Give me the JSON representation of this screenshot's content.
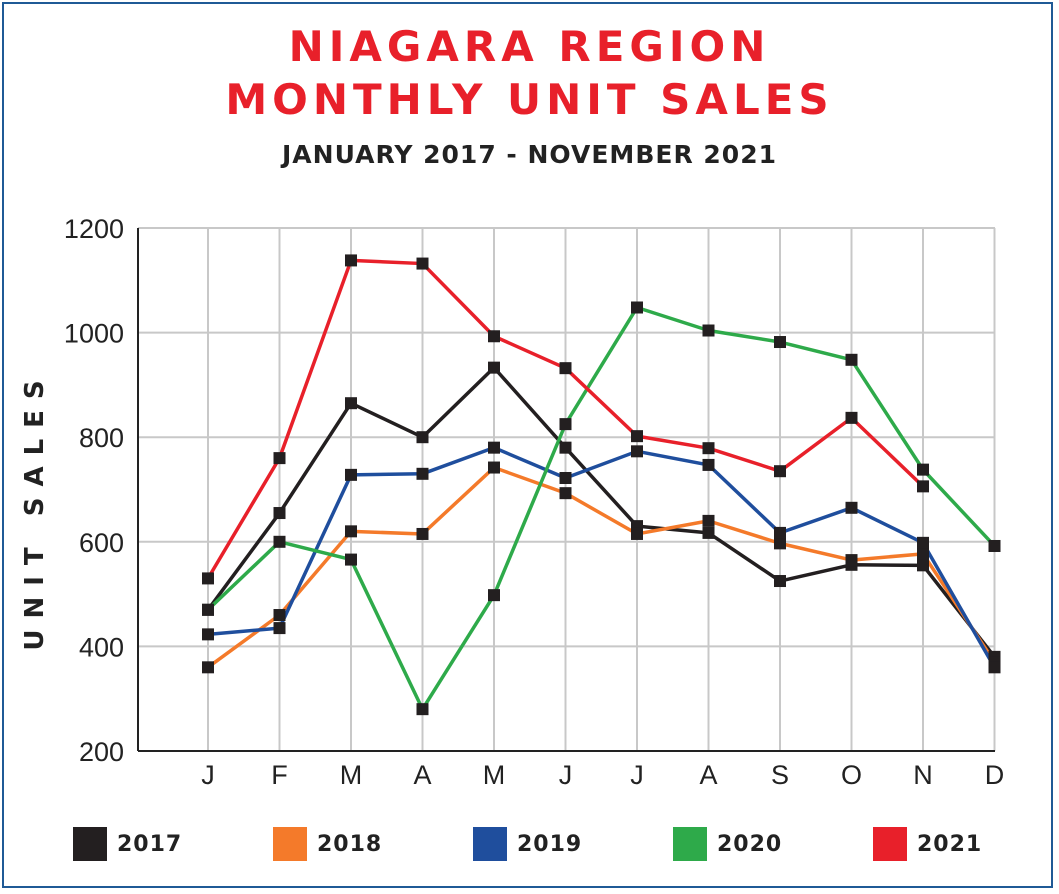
{
  "header": {
    "title_line1": "NIAGARA REGION",
    "title_line2": "MONTHLY UNIT SALES",
    "subtitle": "JANUARY 2017 - NOVEMBER 2021"
  },
  "chart_data": {
    "type": "line",
    "title": "NIAGARA REGION MONTHLY UNIT SALES",
    "subtitle": "JANUARY 2017 - NOVEMBER 2021",
    "ylabel": "UNIT SALES",
    "xlabel": "",
    "categories": [
      "J",
      "F",
      "M",
      "A",
      "M",
      "J",
      "J",
      "A",
      "S",
      "O",
      "N",
      "D"
    ],
    "ylim": [
      200,
      1200
    ],
    "yticks": [
      200,
      400,
      600,
      800,
      1000,
      1200
    ],
    "grid": true,
    "legend_position": "bottom",
    "series": [
      {
        "name": "2017",
        "color": "#231f20",
        "values": [
          470,
          655,
          865,
          800,
          933,
          780,
          630,
          617,
          525,
          556,
          555,
          380
        ]
      },
      {
        "name": "2018",
        "color": "#f47a2a",
        "values": [
          360,
          460,
          620,
          615,
          742,
          693,
          615,
          640,
          597,
          565,
          577,
          370
        ]
      },
      {
        "name": "2019",
        "color": "#1f4e9d",
        "values": [
          423,
          435,
          728,
          730,
          780,
          722,
          773,
          747,
          617,
          665,
          598,
          360
        ]
      },
      {
        "name": "2020",
        "color": "#2eaa4a",
        "values": [
          470,
          600,
          566,
          280,
          498,
          825,
          1048,
          1004,
          982,
          948,
          738,
          592
        ]
      },
      {
        "name": "2021",
        "color": "#e8202a",
        "values": [
          530,
          760,
          1138,
          1132,
          993,
          932,
          802,
          779,
          735,
          837,
          706,
          null
        ]
      }
    ]
  }
}
